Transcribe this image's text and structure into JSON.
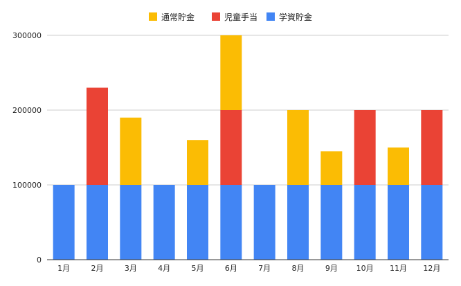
{
  "chart_data": {
    "type": "bar",
    "stacked": true,
    "categories": [
      "1月",
      "2月",
      "3月",
      "4月",
      "5月",
      "6月",
      "7月",
      "8月",
      "9月",
      "10月",
      "11月",
      "12月"
    ],
    "series": [
      {
        "name": "学資貯金",
        "color": "#4285f4",
        "values": [
          100000,
          100000,
          100000,
          100000,
          100000,
          100000,
          100000,
          100000,
          100000,
          100000,
          100000,
          100000
        ]
      },
      {
        "name": "児童手当",
        "color": "#ea4335",
        "values": [
          0,
          130000,
          0,
          0,
          0,
          100000,
          0,
          0,
          0,
          100000,
          0,
          100000
        ]
      },
      {
        "name": "通常貯金",
        "color": "#fbbc04",
        "values": [
          0,
          0,
          90000,
          0,
          60000,
          100000,
          0,
          100000,
          45000,
          0,
          50000,
          0
        ]
      }
    ],
    "legend_order": [
      "通常貯金",
      "児童手当",
      "学資貯金"
    ],
    "legend_position": "top",
    "ylim": [
      0,
      300000
    ],
    "yticks": [
      "0",
      "100000",
      "200000",
      "300000"
    ],
    "grid": true,
    "title": "",
    "xlabel": "",
    "ylabel": ""
  }
}
